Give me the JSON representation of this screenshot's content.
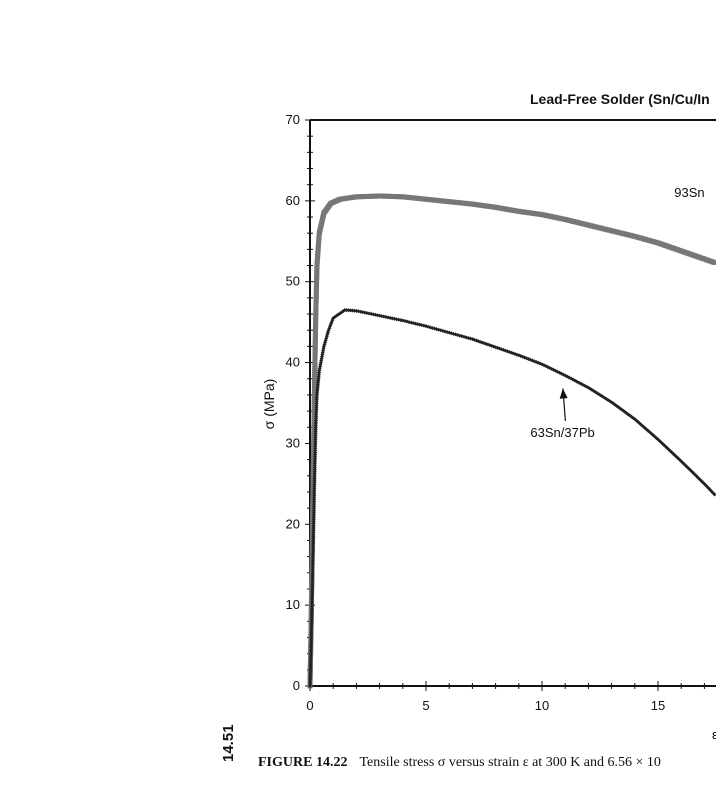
{
  "page_number": "14.51",
  "caption": {
    "label": "FIGURE 14.22",
    "text": "Tensile stress σ versus strain ε at 300 K and 6.56 × 10"
  },
  "chart_data": {
    "type": "scatter",
    "title": "Lead-Free Solder (Sn/Cu/In",
    "xlabel": "ε",
    "ylabel": "σ   (MPa)",
    "xlim": [
      0,
      17.5
    ],
    "ylim": [
      0,
      70
    ],
    "x_ticks": [
      0,
      5,
      10,
      15
    ],
    "y_ticks": [
      0,
      10,
      20,
      30,
      40,
      50,
      60,
      70
    ],
    "grid": false,
    "series": [
      {
        "name": "93Sn",
        "color": "#777777",
        "marker": "square",
        "points": [
          [
            0,
            0
          ],
          [
            0.05,
            8
          ],
          [
            0.1,
            18
          ],
          [
            0.15,
            28
          ],
          [
            0.2,
            38
          ],
          [
            0.25,
            46
          ],
          [
            0.3,
            52
          ],
          [
            0.4,
            56
          ],
          [
            0.6,
            58.5
          ],
          [
            0.9,
            59.7
          ],
          [
            1.3,
            60.2
          ],
          [
            2,
            60.5
          ],
          [
            3,
            60.6
          ],
          [
            4,
            60.5
          ],
          [
            5,
            60.2
          ],
          [
            6,
            59.9
          ],
          [
            7,
            59.6
          ],
          [
            8,
            59.2
          ],
          [
            9,
            58.7
          ],
          [
            10,
            58.3
          ],
          [
            11,
            57.7
          ],
          [
            12,
            57.0
          ],
          [
            13,
            56.3
          ],
          [
            14,
            55.6
          ],
          [
            15,
            54.8
          ],
          [
            16,
            53.8
          ],
          [
            17,
            52.8
          ],
          [
            17.5,
            52.3
          ]
        ]
      },
      {
        "name": "63Sn/37Pb",
        "color": "#222222",
        "marker": "diamond",
        "points": [
          [
            0,
            0
          ],
          [
            0.05,
            5
          ],
          [
            0.1,
            12
          ],
          [
            0.15,
            19
          ],
          [
            0.2,
            26
          ],
          [
            0.25,
            32
          ],
          [
            0.3,
            36
          ],
          [
            0.4,
            39
          ],
          [
            0.6,
            42
          ],
          [
            0.8,
            44
          ],
          [
            1.0,
            45.5
          ],
          [
            1.5,
            46.5
          ],
          [
            2,
            46.4
          ],
          [
            3,
            45.8
          ],
          [
            4,
            45.2
          ],
          [
            5,
            44.5
          ],
          [
            6,
            43.7
          ],
          [
            7,
            42.9
          ],
          [
            8,
            41.9
          ],
          [
            9,
            40.9
          ],
          [
            10,
            39.8
          ],
          [
            11,
            38.4
          ],
          [
            12,
            36.9
          ],
          [
            13,
            35.1
          ],
          [
            14,
            33.0
          ],
          [
            15,
            30.5
          ],
          [
            16,
            27.8
          ],
          [
            17,
            25.0
          ],
          [
            17.5,
            23.5
          ]
        ]
      }
    ],
    "annotations": [
      {
        "text": "63Sn/37Pb",
        "x": 9.5,
        "y": 30.8,
        "arrow_to": [
          10.9,
          36.8
        ]
      },
      {
        "text": "93Sn",
        "x": 15.7,
        "y": 60.5
      }
    ]
  }
}
